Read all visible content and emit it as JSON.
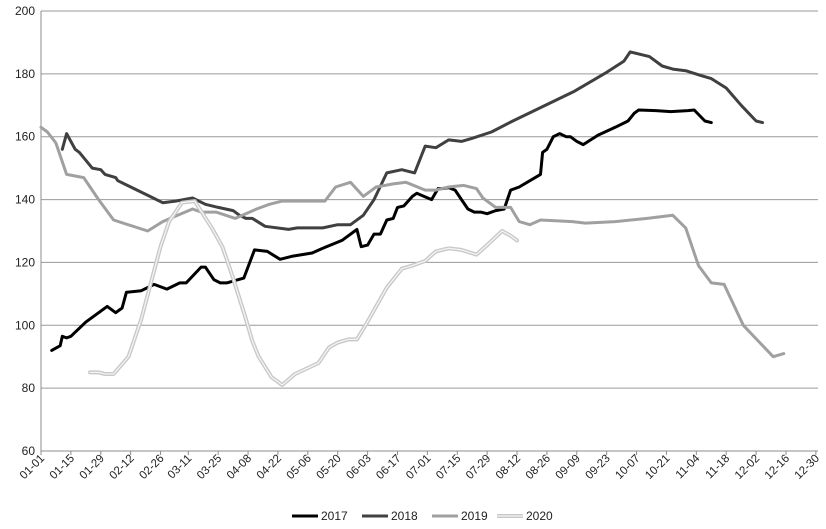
{
  "chart_data": {
    "type": "line",
    "title": "",
    "xlabel": "",
    "ylabel": "",
    "ylim": [
      60,
      200
    ],
    "yticks": [
      60,
      80,
      100,
      120,
      140,
      160,
      180,
      200
    ],
    "xlim": [
      1,
      365
    ],
    "x_unit": "day of year",
    "xtick_labels": [
      "01-01",
      "01-15",
      "01-29",
      "02-12",
      "02-26",
      "03-11",
      "03-25",
      "04-08",
      "04-22",
      "05-06",
      "05-20",
      "06-03",
      "06-17",
      "07-01",
      "07-15",
      "07-29",
      "08-12",
      "08-26",
      "09-09",
      "09-23",
      "10-07",
      "10-21",
      "11-04",
      "11-18",
      "12-02",
      "12-16",
      "12-30"
    ],
    "xtick_days": [
      1,
      15,
      29,
      43,
      57,
      70,
      84,
      98,
      112,
      126,
      140,
      154,
      168,
      182,
      196,
      210,
      224,
      238,
      252,
      266,
      280,
      294,
      308,
      322,
      336,
      350,
      364
    ],
    "grid": "horizontal",
    "legend": "bottom",
    "series": [
      {
        "name": "2017",
        "color": "#000000",
        "style": "solid",
        "points": [
          [
            6,
            92
          ],
          [
            10,
            93.5
          ],
          [
            11,
            96.5
          ],
          [
            13,
            96
          ],
          [
            15,
            96.5
          ],
          [
            22,
            101
          ],
          [
            32,
            106
          ],
          [
            36,
            104
          ],
          [
            39,
            105.5
          ],
          [
            41,
            110.5
          ],
          [
            48,
            111
          ],
          [
            54,
            113
          ],
          [
            60,
            111.5
          ],
          [
            66,
            113.5
          ],
          [
            69,
            113.5
          ],
          [
            76,
            118.5
          ],
          [
            78,
            118.5
          ],
          [
            82,
            114.5
          ],
          [
            85,
            113.5
          ],
          [
            88,
            113.5
          ],
          [
            96,
            115
          ],
          [
            101,
            124
          ],
          [
            107,
            123.5
          ],
          [
            113,
            121
          ],
          [
            119,
            122
          ],
          [
            128,
            123
          ],
          [
            133,
            124.5
          ],
          [
            142,
            127
          ],
          [
            148,
            130
          ],
          [
            149,
            130.5
          ],
          [
            151,
            125
          ],
          [
            154,
            125.5
          ],
          [
            157,
            129
          ],
          [
            160,
            129
          ],
          [
            163,
            133.5
          ],
          [
            166,
            134
          ],
          [
            168,
            137.5
          ],
          [
            171,
            138
          ],
          [
            175,
            141
          ],
          [
            177,
            142
          ],
          [
            184,
            140
          ],
          [
            187,
            143.5
          ],
          [
            189,
            143.5
          ],
          [
            192,
            143.8
          ],
          [
            195,
            143
          ],
          [
            198,
            140
          ],
          [
            201,
            137
          ],
          [
            204,
            136
          ],
          [
            207,
            136
          ],
          [
            210,
            135.5
          ],
          [
            214,
            136.5
          ],
          [
            218,
            137
          ],
          [
            221,
            143
          ],
          [
            225,
            144
          ],
          [
            235,
            148
          ],
          [
            236,
            155
          ],
          [
            238,
            156
          ],
          [
            241,
            160
          ],
          [
            244,
            161
          ],
          [
            247,
            160
          ],
          [
            249,
            160
          ],
          [
            252,
            158.5
          ],
          [
            255,
            157.5
          ],
          [
            262,
            160.5
          ],
          [
            270,
            163
          ],
          [
            276,
            165
          ],
          [
            279,
            167.5
          ],
          [
            281,
            168.5
          ],
          [
            289,
            168.3
          ],
          [
            296,
            168
          ],
          [
            304,
            168.3
          ],
          [
            307,
            168.5
          ],
          [
            312,
            165
          ],
          [
            315,
            164.5
          ]
        ]
      },
      {
        "name": "2018",
        "color": "#404040",
        "style": "solid",
        "points": [
          [
            11,
            156
          ],
          [
            13,
            161
          ],
          [
            17,
            156
          ],
          [
            19,
            155
          ],
          [
            25,
            150
          ],
          [
            29,
            149.5
          ],
          [
            31,
            148
          ],
          [
            36,
            147
          ],
          [
            37,
            146
          ],
          [
            43,
            144
          ],
          [
            52,
            141
          ],
          [
            58,
            139
          ],
          [
            64,
            139.5
          ],
          [
            72,
            140.5
          ],
          [
            78,
            138.5
          ],
          [
            84,
            137.5
          ],
          [
            91,
            136.5
          ],
          [
            94,
            135
          ],
          [
            97,
            134
          ],
          [
            100,
            134
          ],
          [
            106,
            131.5
          ],
          [
            117,
            130.5
          ],
          [
            121,
            131
          ],
          [
            133,
            131
          ],
          [
            140,
            132
          ],
          [
            146,
            132
          ],
          [
            152,
            135
          ],
          [
            157,
            140
          ],
          [
            163,
            148.5
          ],
          [
            170,
            149.5
          ],
          [
            176,
            148.5
          ],
          [
            181,
            157
          ],
          [
            186,
            156.5
          ],
          [
            192,
            159
          ],
          [
            198,
            158.5
          ],
          [
            203,
            159.5
          ],
          [
            212,
            161.5
          ],
          [
            222,
            165
          ],
          [
            251,
            174.5
          ],
          [
            266,
            180.5
          ],
          [
            274,
            184
          ],
          [
            277,
            187
          ],
          [
            286,
            185.5
          ],
          [
            292,
            182.5
          ],
          [
            297,
            181.5
          ],
          [
            303,
            181
          ],
          [
            310,
            179.5
          ],
          [
            315,
            178.5
          ],
          [
            322,
            175.5
          ],
          [
            329,
            170
          ],
          [
            336,
            165
          ],
          [
            339,
            164.5
          ]
        ]
      },
      {
        "name": "2019",
        "color": "#a0a0a0",
        "style": "solid",
        "points": [
          [
            1,
            163
          ],
          [
            4,
            161.5
          ],
          [
            8,
            158
          ],
          [
            13,
            148
          ],
          [
            17,
            147.5
          ],
          [
            21,
            147
          ],
          [
            28,
            140
          ],
          [
            35,
            133.5
          ],
          [
            51,
            130
          ],
          [
            58,
            133
          ],
          [
            65,
            135
          ],
          [
            72,
            137
          ],
          [
            76,
            136
          ],
          [
            83,
            136
          ],
          [
            92,
            134
          ],
          [
            102,
            137
          ],
          [
            108,
            138.5
          ],
          [
            114,
            139.5
          ],
          [
            124,
            139.5
          ],
          [
            134,
            139.5
          ],
          [
            139,
            144
          ],
          [
            146,
            145.5
          ],
          [
            152,
            141
          ],
          [
            158,
            144
          ],
          [
            166,
            145
          ],
          [
            172,
            145.5
          ],
          [
            181,
            143
          ],
          [
            186,
            143
          ],
          [
            192,
            144
          ],
          [
            199,
            144.5
          ],
          [
            205,
            143.5
          ],
          [
            208,
            140.5
          ],
          [
            214,
            137.5
          ],
          [
            221,
            137.5
          ],
          [
            225,
            133
          ],
          [
            230,
            132
          ],
          [
            235,
            133.5
          ],
          [
            250,
            133
          ],
          [
            256,
            132.5
          ],
          [
            270,
            133
          ],
          [
            285,
            134
          ],
          [
            297,
            135
          ],
          [
            303,
            131
          ],
          [
            309,
            119
          ],
          [
            315,
            113.5
          ],
          [
            321,
            113
          ],
          [
            330,
            100
          ],
          [
            344,
            90
          ],
          [
            349,
            91
          ]
        ]
      },
      {
        "name": "2020",
        "color": "#c8c8c8",
        "style": "double",
        "points": [
          [
            24,
            85
          ],
          [
            28,
            85
          ],
          [
            31,
            84.5
          ],
          [
            35,
            84.5
          ],
          [
            42,
            90
          ],
          [
            48,
            102
          ],
          [
            57,
            125
          ],
          [
            61,
            133
          ],
          [
            67,
            139
          ],
          [
            73,
            139.5
          ],
          [
            81,
            131
          ],
          [
            86,
            125
          ],
          [
            91,
            115
          ],
          [
            97,
            102
          ],
          [
            100,
            95
          ],
          [
            103,
            90
          ],
          [
            109,
            83.5
          ],
          [
            114,
            81
          ],
          [
            120,
            84.5
          ],
          [
            131,
            88
          ],
          [
            136,
            93
          ],
          [
            140,
            94.5
          ],
          [
            145,
            95.5
          ],
          [
            149,
            95.5
          ],
          [
            153,
            100
          ],
          [
            163,
            112
          ],
          [
            170,
            118
          ],
          [
            175,
            119
          ],
          [
            181,
            120.5
          ],
          [
            186,
            123.5
          ],
          [
            192,
            124.5
          ],
          [
            198,
            124
          ],
          [
            205,
            122.5
          ],
          [
            210,
            125.5
          ],
          [
            217,
            130
          ],
          [
            221,
            128.5
          ],
          [
            224,
            127
          ]
        ]
      }
    ]
  }
}
